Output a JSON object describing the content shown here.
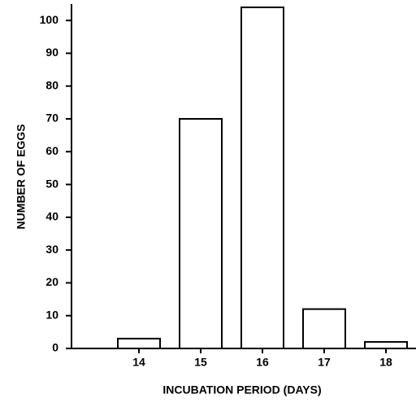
{
  "chart_data": {
    "type": "bar",
    "x_label": "INCUBATION PERIOD (DAYS)",
    "y_label": "NUMBER OF EGGS",
    "categories": [
      "14",
      "15",
      "16",
      "17",
      "18"
    ],
    "values": [
      3,
      70,
      104,
      12,
      2
    ],
    "color": "#ffffff",
    "ylim": [
      0,
      105
    ],
    "yticks": [
      0,
      10,
      20,
      30,
      40,
      50,
      60,
      70,
      80,
      90,
      100
    ],
    "grid": false
  }
}
